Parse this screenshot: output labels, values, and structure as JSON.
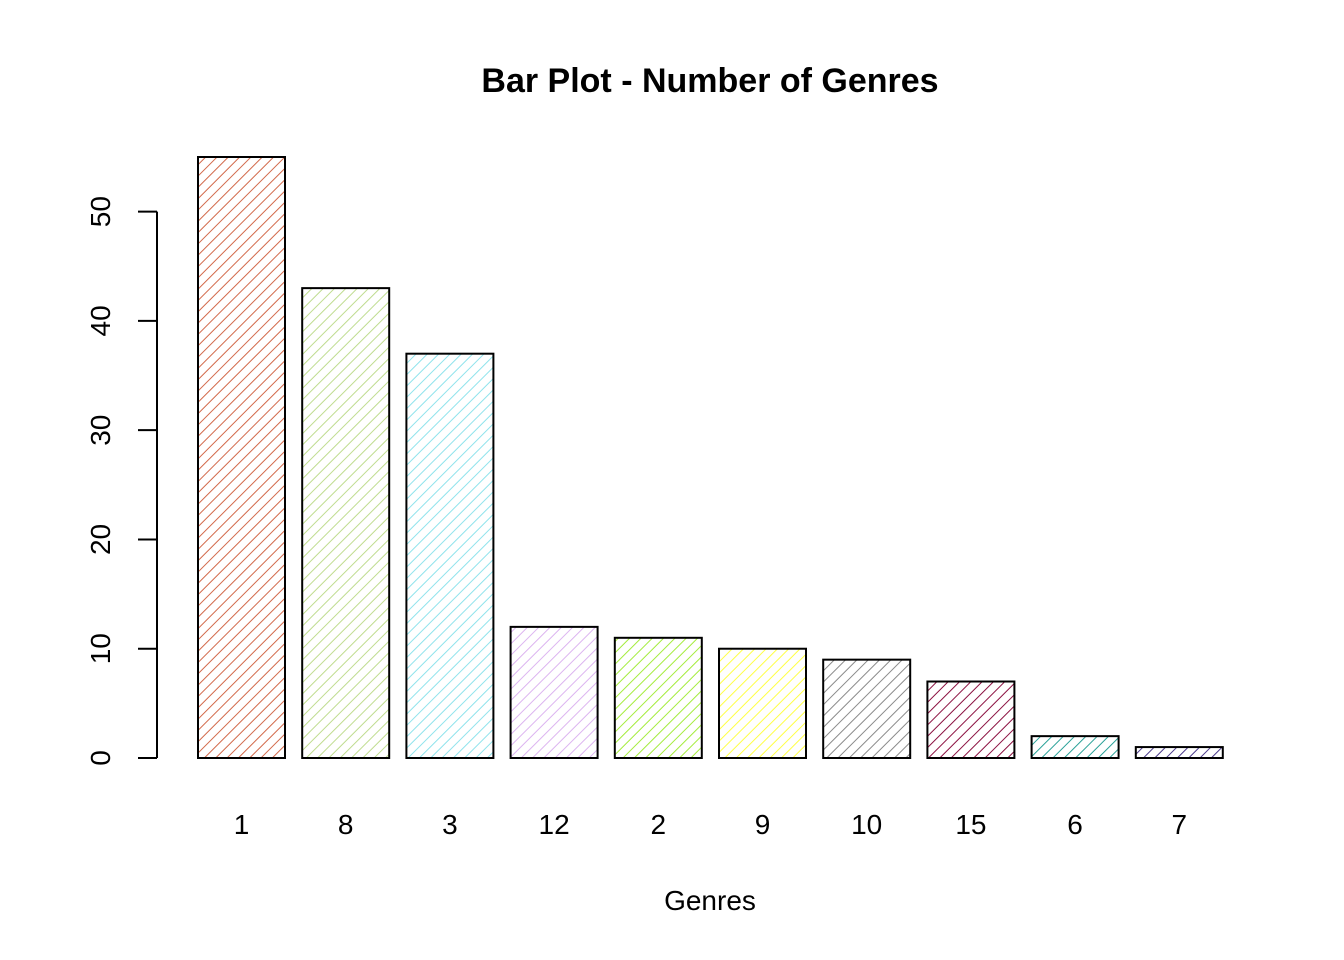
{
  "chart_data": {
    "type": "bar",
    "title": "Bar Plot - Number of Genres",
    "xlabel": "Genres",
    "ylabel": "",
    "categories": [
      "1",
      "8",
      "3",
      "12",
      "2",
      "9",
      "10",
      "15",
      "6",
      "7"
    ],
    "values": [
      55,
      43,
      37,
      12,
      11,
      10,
      9,
      7,
      2,
      1
    ],
    "colors": [
      "#d2694a",
      "#bfdc8f",
      "#8fe3ec",
      "#dcb4f0",
      "#a4ec3c",
      "#ffff44",
      "#8a8a8a",
      "#8b1040",
      "#2aa198",
      "#4a3a8a"
    ],
    "fill_pattern": "diagonal-hatch",
    "ylim": [
      0,
      55
    ],
    "yticks": [
      0,
      10,
      20,
      30,
      40,
      50
    ],
    "grid": false,
    "legend": "none"
  }
}
